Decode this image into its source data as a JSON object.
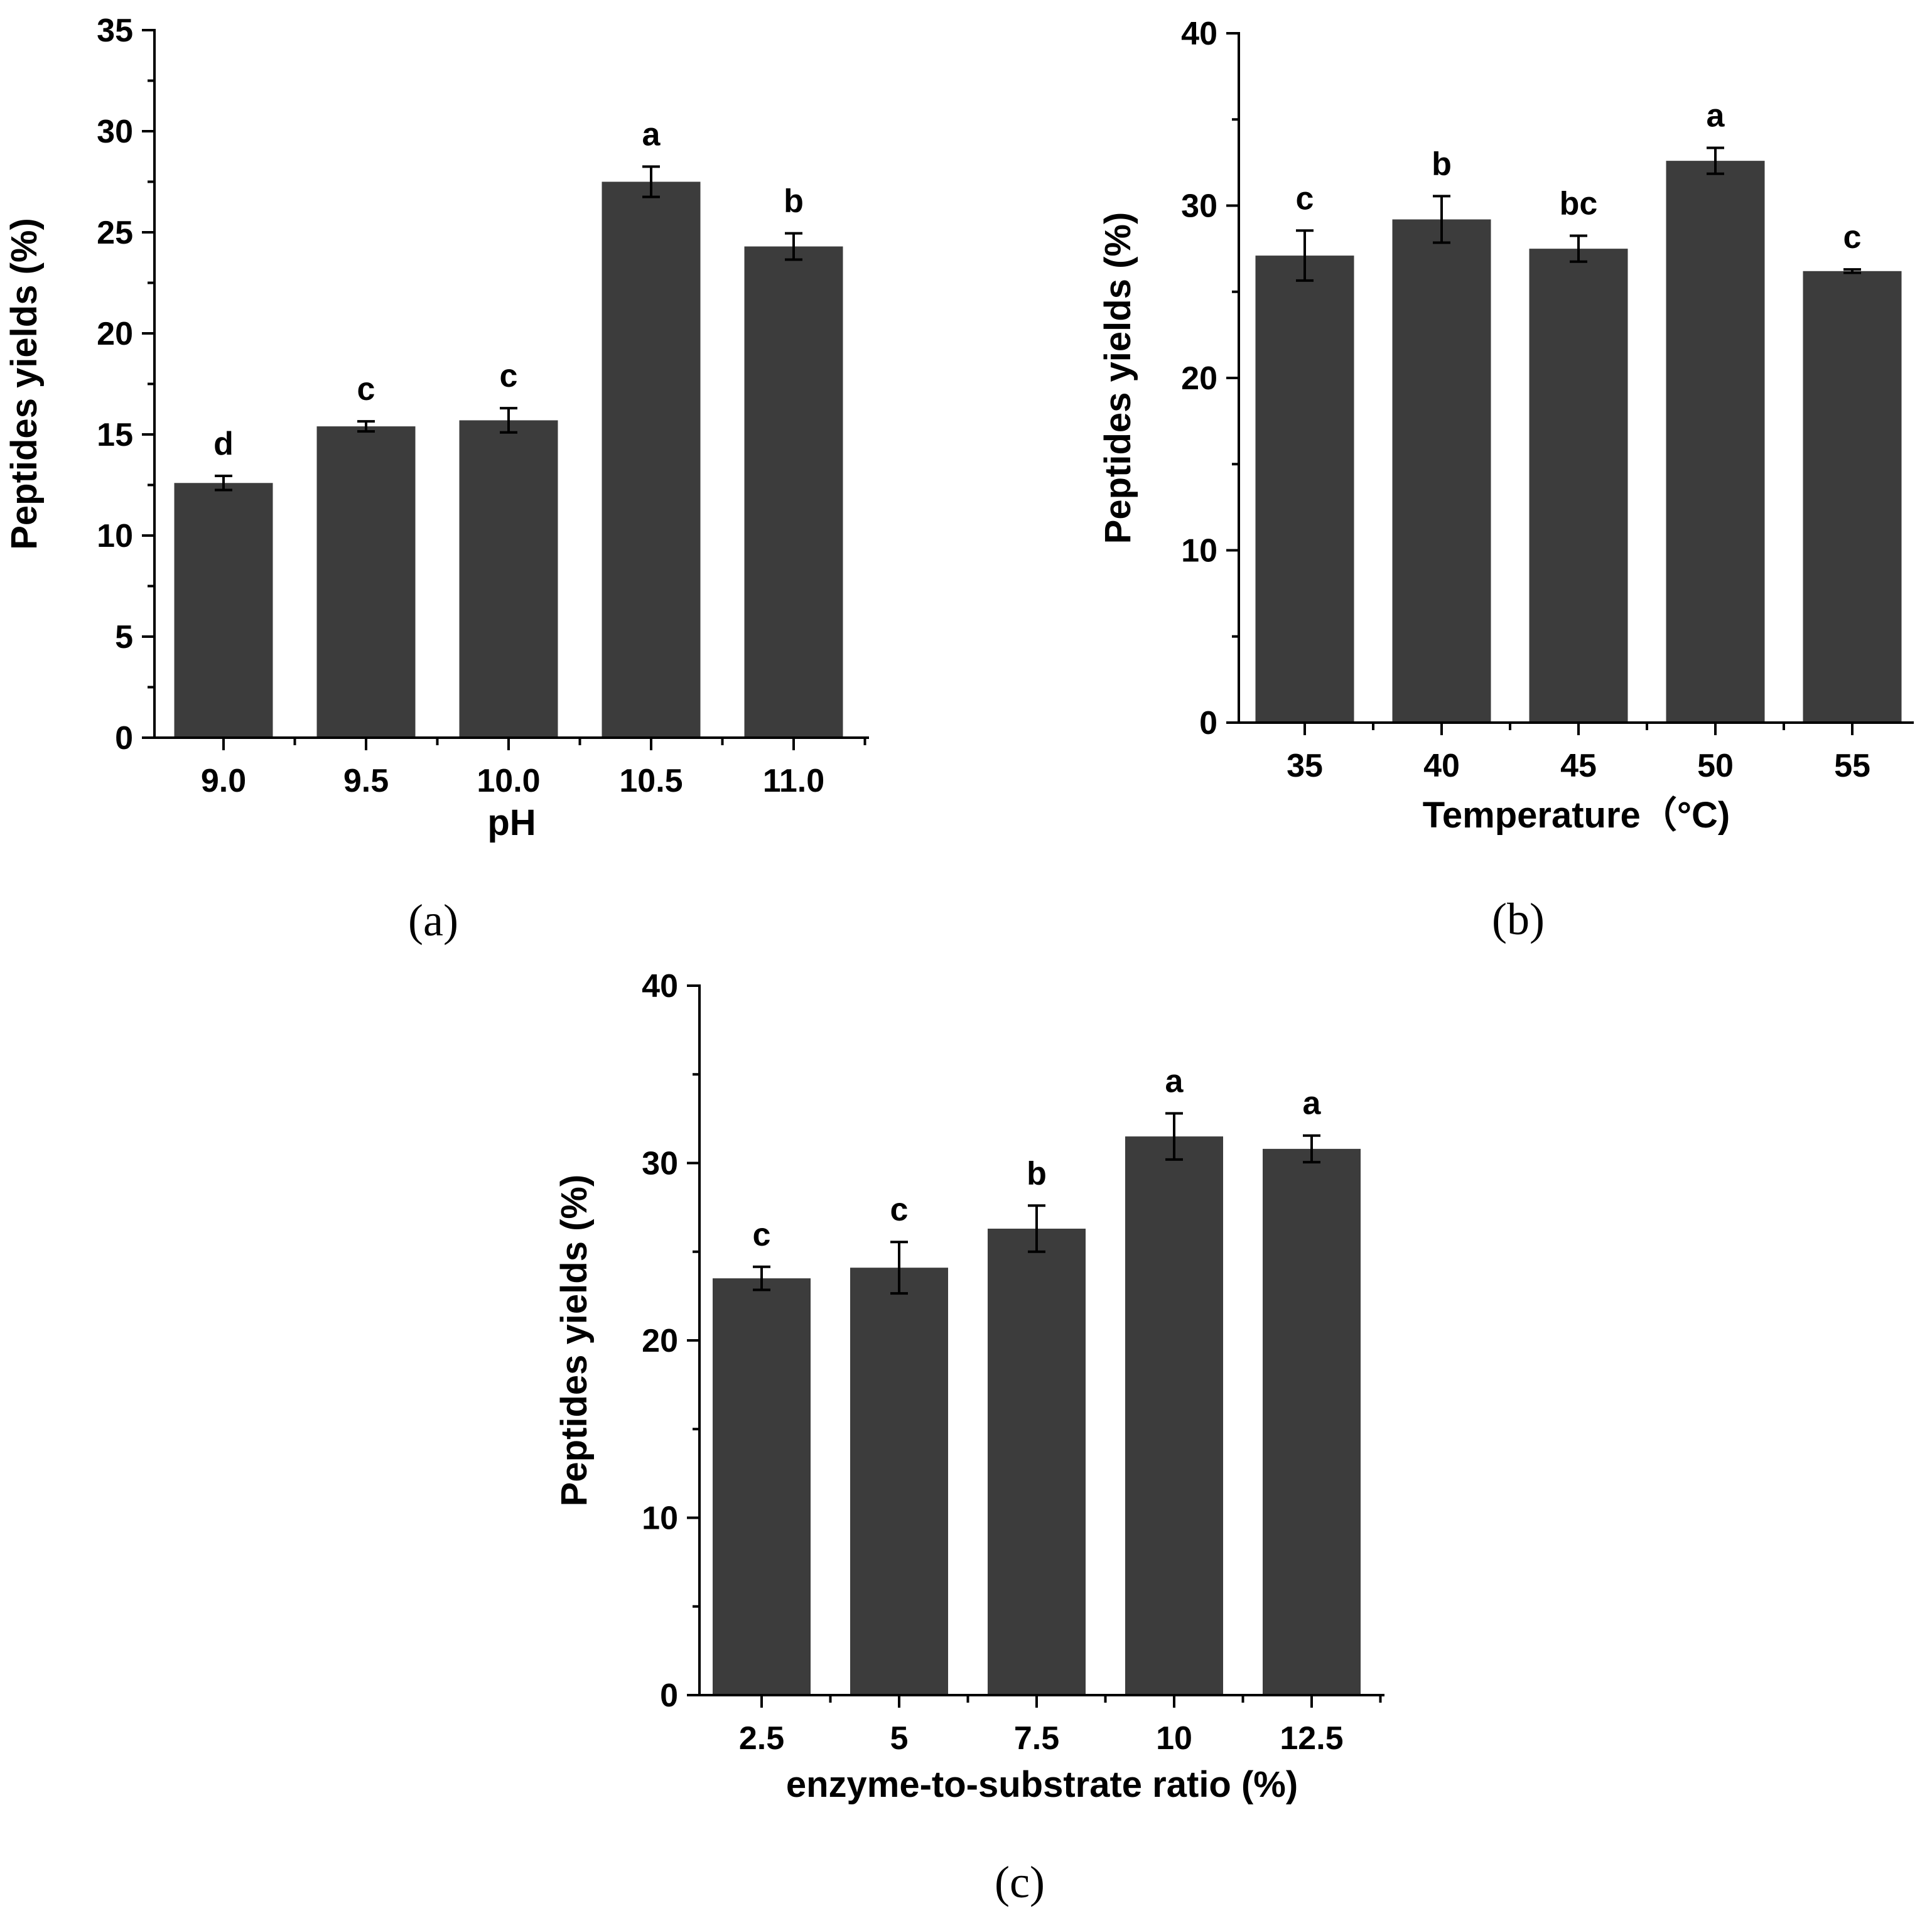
{
  "colors": {
    "bar": "#3c3c3c",
    "axis": "#000000",
    "background": "#ffffff"
  },
  "chart_data": [
    {
      "panel": "(a)",
      "type": "bar",
      "categories": [
        "9.0",
        "9.5",
        "10.0",
        "10.5",
        "11.0"
      ],
      "values": [
        12.6,
        15.4,
        15.7,
        27.5,
        24.3
      ],
      "errors": [
        0.35,
        0.25,
        0.6,
        0.75,
        0.65
      ],
      "letters": [
        "d",
        "c",
        "c",
        "a",
        "b"
      ],
      "xlabel": "pH",
      "ylabel": "Peptides yields (%)",
      "ylim": [
        0,
        35
      ],
      "yticks": [
        0,
        5,
        10,
        15,
        20,
        25,
        30,
        35
      ],
      "ytick_labels": [
        "0",
        "5",
        "10",
        "15",
        "20",
        "25",
        "30",
        "35"
      ]
    },
    {
      "panel": "(b)",
      "type": "bar",
      "categories": [
        "35",
        "40",
        "45",
        "50",
        "55"
      ],
      "values": [
        27.1,
        29.2,
        27.5,
        32.6,
        26.2
      ],
      "errors": [
        1.45,
        1.35,
        0.75,
        0.75,
        0.1
      ],
      "letters": [
        "c",
        "b",
        "bc",
        "a",
        "c"
      ],
      "xlabel": "Temperature（°C)",
      "ylabel": "Peptides yields (%)",
      "ylim": [
        0,
        40
      ],
      "yticks": [
        0,
        10,
        20,
        30,
        40
      ],
      "ytick_labels": [
        "0",
        "10",
        "20",
        "30",
        "40"
      ]
    },
    {
      "panel": "(c)",
      "type": "bar",
      "categories": [
        "2.5",
        "5",
        "7.5",
        "10",
        "12.5"
      ],
      "values": [
        23.5,
        24.1,
        26.3,
        31.5,
        30.8
      ],
      "errors": [
        0.65,
        1.45,
        1.3,
        1.3,
        0.75
      ],
      "letters": [
        "c",
        "c",
        "b",
        "a",
        "a"
      ],
      "xlabel": "enzyme-to-substrate ratio (%)",
      "ylabel": "Peptides yields (%)",
      "ylim": [
        0,
        40
      ],
      "yticks": [
        0,
        10,
        20,
        30,
        40
      ],
      "ytick_labels": [
        "0",
        "10",
        "20",
        "30",
        "40"
      ]
    }
  ]
}
